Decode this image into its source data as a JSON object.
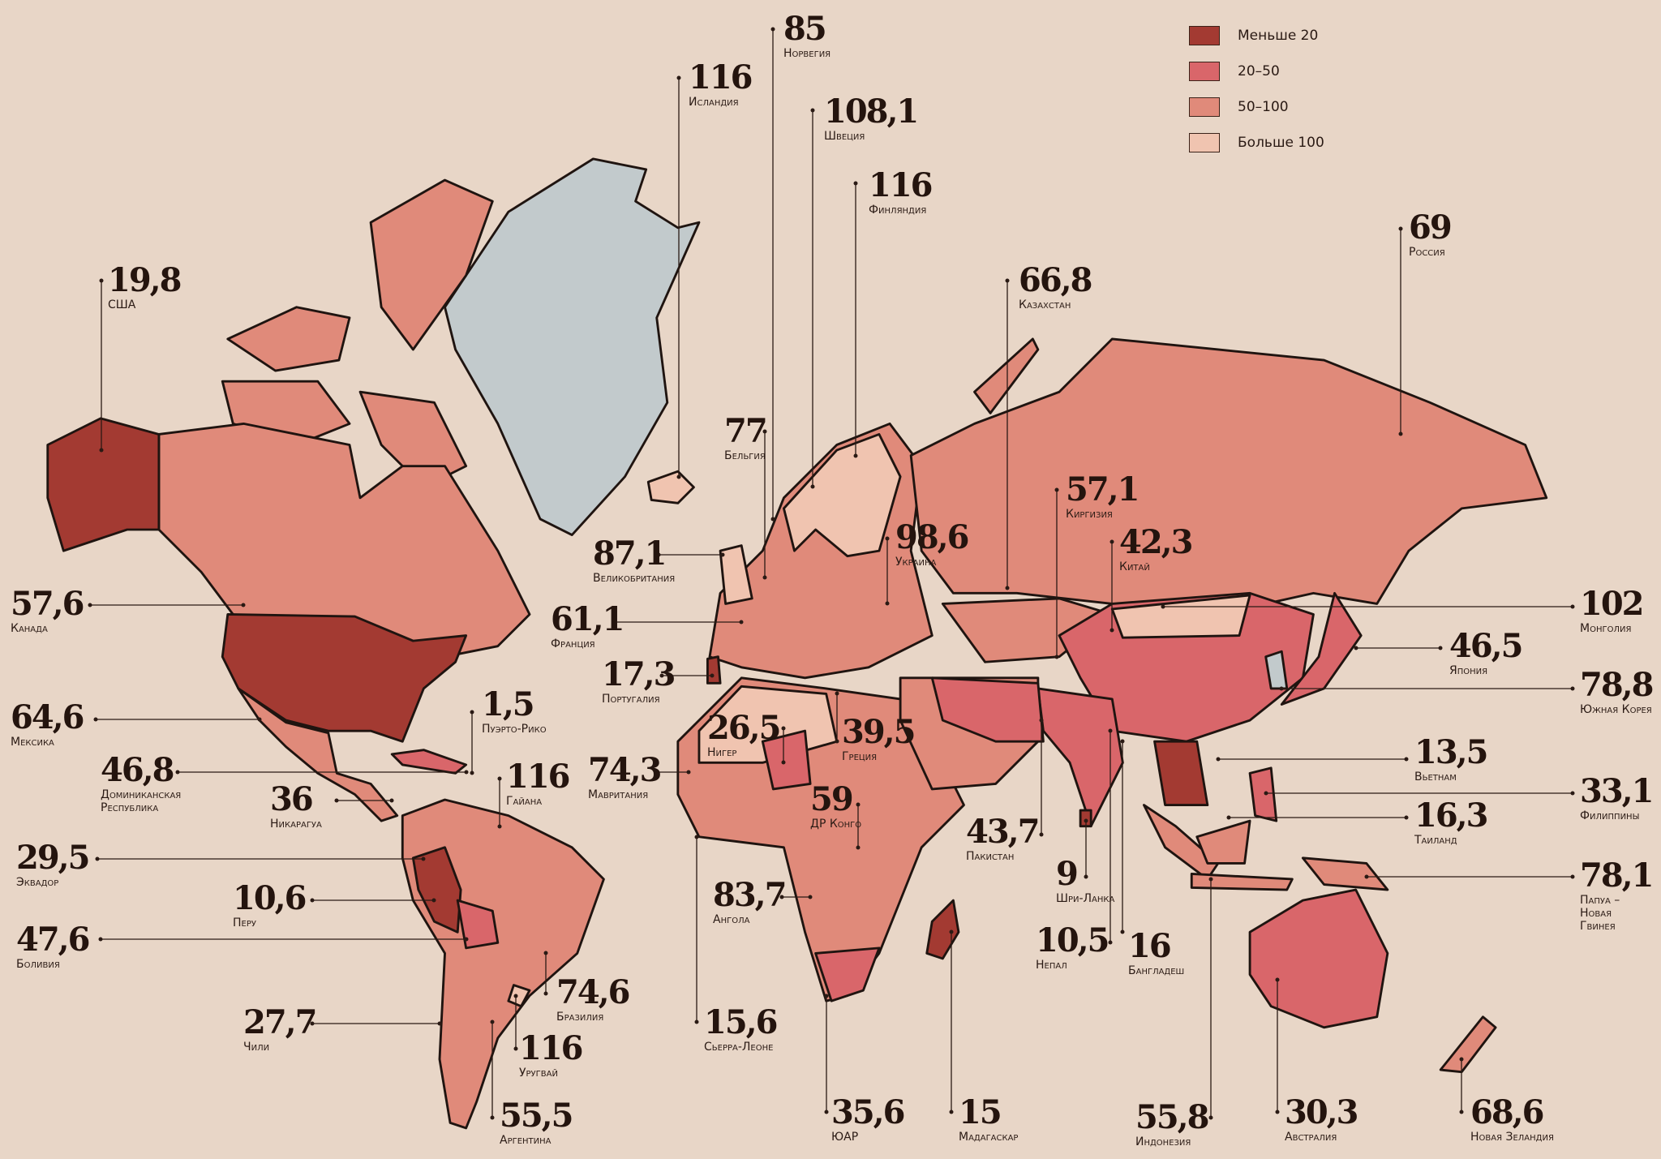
{
  "legend": [
    {
      "label": "Меньше 20",
      "color": "#a33a32"
    },
    {
      "label": "20–50",
      "color": "#d9666a"
    },
    {
      "label": "50–100",
      "color": "#e08a7a"
    },
    {
      "label": "Больше 100",
      "color": "#f0c4b0"
    }
  ],
  "no_data_color": "#c2cacc",
  "background": "#e8d6c7",
  "countries": [
    {
      "value": "85",
      "name": "Норвегия"
    },
    {
      "value": "116",
      "name": "Исландия"
    },
    {
      "value": "108,1",
      "name": "Швеция"
    },
    {
      "value": "116",
      "name": "Финляндия"
    },
    {
      "value": "69",
      "name": "Россия"
    },
    {
      "value": "66,8",
      "name": "Казахстан"
    },
    {
      "value": "19,8",
      "name": "США"
    },
    {
      "value": "77",
      "name": "Бельгия"
    },
    {
      "value": "57,1",
      "name": "Киргизия"
    },
    {
      "value": "42,3",
      "name": "Китай"
    },
    {
      "value": "98,6",
      "name": "Украина"
    },
    {
      "value": "87,1",
      "name": "Великобритания"
    },
    {
      "value": "57,6",
      "name": "Канада"
    },
    {
      "value": "61,1",
      "name": "Франция"
    },
    {
      "value": "102",
      "name": "Монголия"
    },
    {
      "value": "46,5",
      "name": "Япония"
    },
    {
      "value": "17,3",
      "name": "Португалия"
    },
    {
      "value": "78,8",
      "name": "Южная Корея"
    },
    {
      "value": "64,6",
      "name": "Мексика"
    },
    {
      "value": "1,5",
      "name": "Пуэрто-Рико"
    },
    {
      "value": "46,8",
      "name": "Доминиканская\nРеспублика"
    },
    {
      "value": "26,5",
      "name": "Нигер"
    },
    {
      "value": "39,5",
      "name": "Греция"
    },
    {
      "value": "74,3",
      "name": "Мавритания"
    },
    {
      "value": "116",
      "name": "Гайана"
    },
    {
      "value": "36",
      "name": "Никарагуа"
    },
    {
      "value": "13,5",
      "name": "Вьетнам"
    },
    {
      "value": "33,1",
      "name": "Филиппины"
    },
    {
      "value": "59",
      "name": "ДР Конго"
    },
    {
      "value": "16,3",
      "name": "Таиланд"
    },
    {
      "value": "43,7",
      "name": "Пакистан"
    },
    {
      "value": "29,5",
      "name": "Эквадор"
    },
    {
      "value": "9",
      "name": "Шри-Ланка"
    },
    {
      "value": "78,1",
      "name": "Папуа –\nНовая\nГвинея"
    },
    {
      "value": "10,6",
      "name": "Перу"
    },
    {
      "value": "83,7",
      "name": "Ангола"
    },
    {
      "value": "47,6",
      "name": "Боливия"
    },
    {
      "value": "10,5",
      "name": "Непал"
    },
    {
      "value": "16",
      "name": "Бангладеш"
    },
    {
      "value": "74,6",
      "name": "Бразилия"
    },
    {
      "value": "15,6",
      "name": "Сьерра-Леоне"
    },
    {
      "value": "27,7",
      "name": "Чили"
    },
    {
      "value": "116",
      "name": "Уругвай"
    },
    {
      "value": "35,6",
      "name": "ЮАР"
    },
    {
      "value": "15",
      "name": "Мадагаскар"
    },
    {
      "value": "55,8",
      "name": "Индонезия"
    },
    {
      "value": "30,3",
      "name": "Австралия"
    },
    {
      "value": "68,6",
      "name": "Новая Зеландия"
    },
    {
      "value": "55,5",
      "name": "Аргентина"
    }
  ]
}
